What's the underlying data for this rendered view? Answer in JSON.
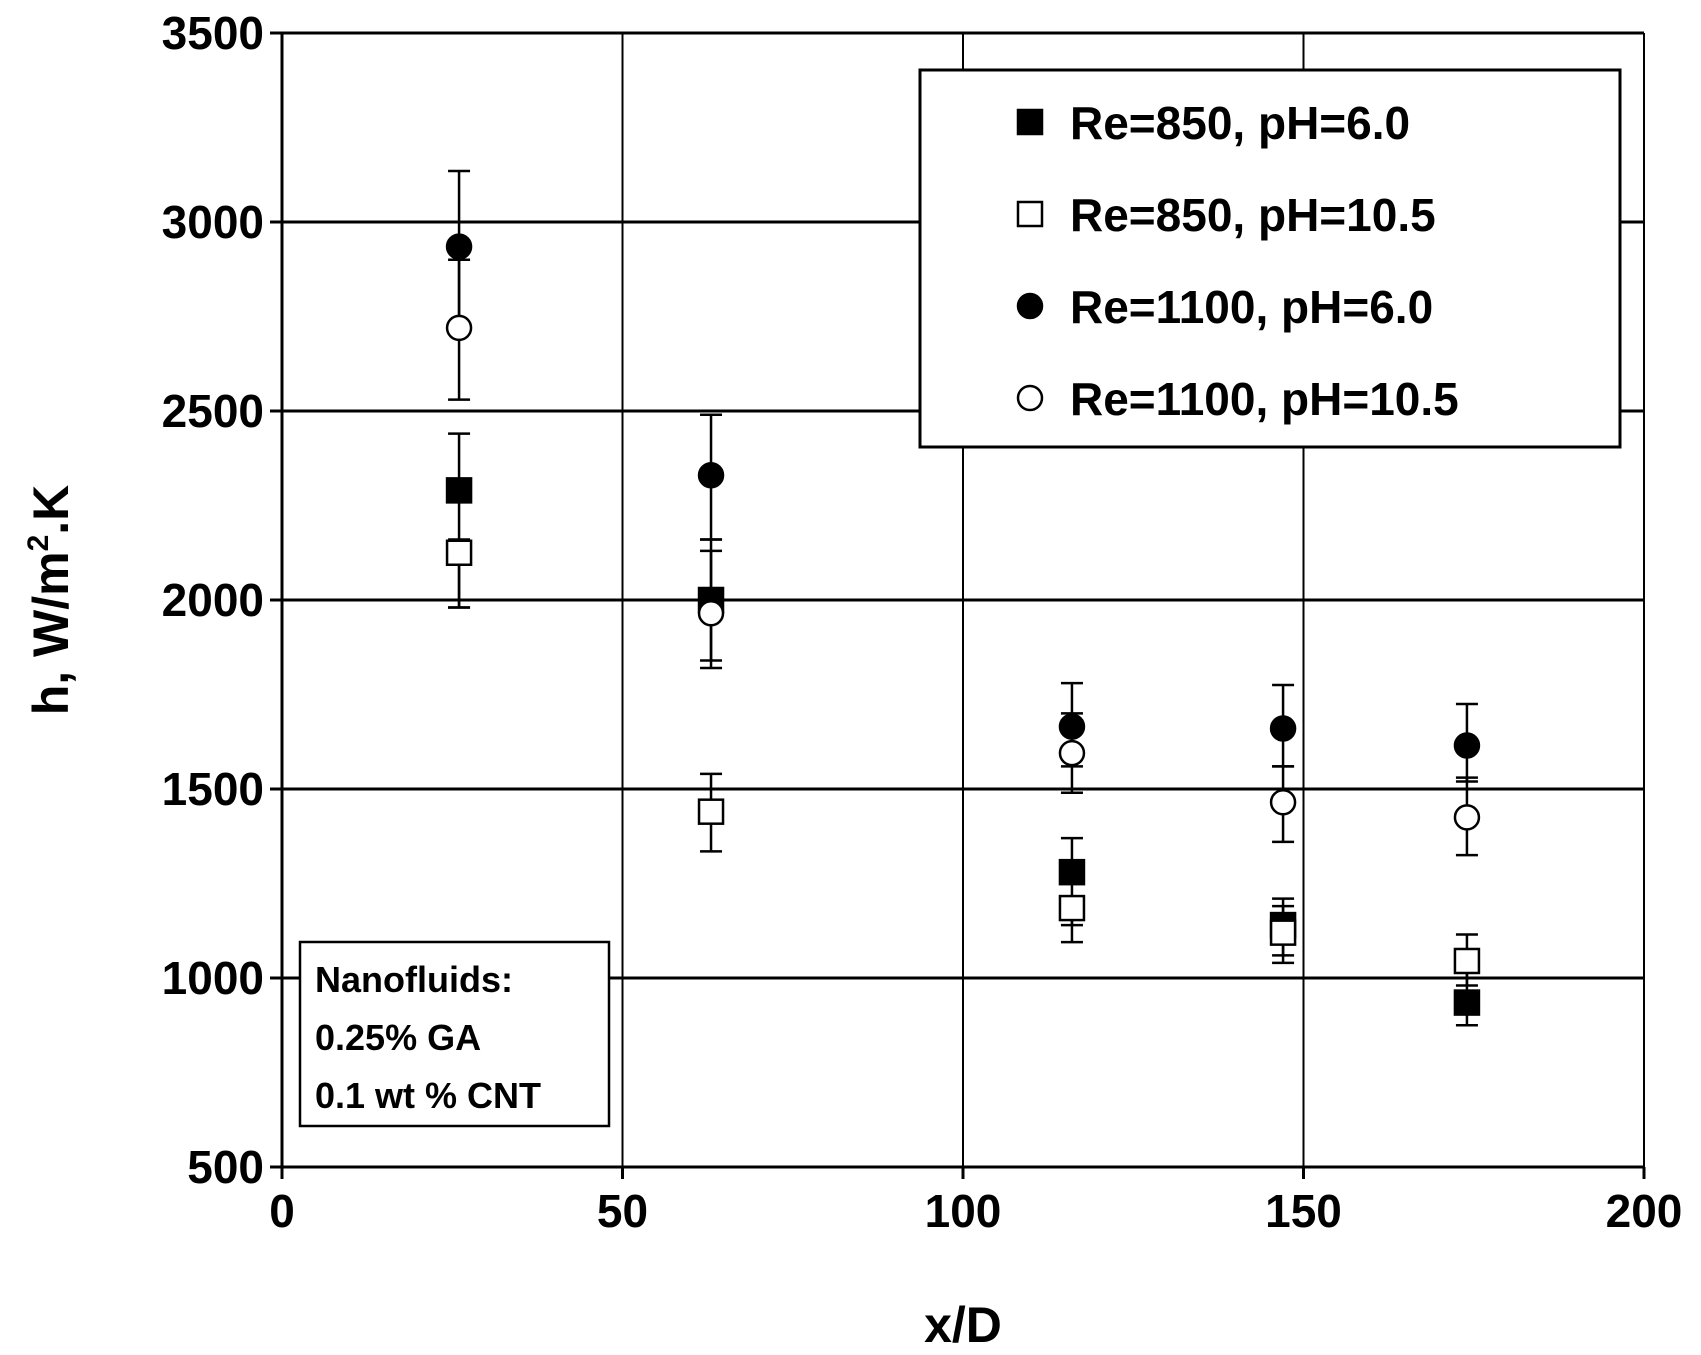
{
  "chart_data": {
    "type": "scatter",
    "title": "",
    "xlabel": "x/D",
    "ylabel_prefix": "h, W/m",
    "ylabel_sup": "2",
    "ylabel_suffix": ".K",
    "xlim": [
      0,
      200
    ],
    "ylim": [
      500,
      3500
    ],
    "xticks": [
      "0",
      "50",
      "100",
      "150",
      "200"
    ],
    "yticks": [
      "500",
      "1000",
      "1500",
      "2000",
      "2500",
      "3000",
      "3500"
    ],
    "grid": true,
    "legend_position": "top-right",
    "series": [
      {
        "name": "Re=850, pH=6.0",
        "marker": "filled-square",
        "points": [
          {
            "x": 26,
            "y": 2290,
            "err_low": 1980,
            "err_high": 2440
          },
          {
            "x": 63,
            "y": 2000,
            "err_low": 1840,
            "err_high": 2160
          },
          {
            "x": 116,
            "y": 1280,
            "err_low": 1140,
            "err_high": 1370
          },
          {
            "x": 147,
            "y": 1140,
            "err_low": 1060,
            "err_high": 1210
          },
          {
            "x": 174,
            "y": 935,
            "err_low": 875,
            "err_high": 1040
          }
        ]
      },
      {
        "name": "Re=850, pH=10.5",
        "marker": "open-square",
        "points": [
          {
            "x": 26,
            "y": 2125,
            "err_low": 1980,
            "err_high": 2160
          },
          {
            "x": 63,
            "y": 1440,
            "err_low": 1335,
            "err_high": 1540
          },
          {
            "x": 116,
            "y": 1185,
            "err_low": 1095,
            "err_high": 1210
          },
          {
            "x": 147,
            "y": 1120,
            "err_low": 1040,
            "err_high": 1190
          },
          {
            "x": 174,
            "y": 1045,
            "err_low": 980,
            "err_high": 1115
          }
        ]
      },
      {
        "name": "Re=1100, pH=6.0",
        "marker": "filled-circle",
        "points": [
          {
            "x": 26,
            "y": 2935,
            "err_low": 2730,
            "err_high": 3135
          },
          {
            "x": 63,
            "y": 2330,
            "err_low": 2160,
            "err_high": 2490
          },
          {
            "x": 116,
            "y": 1665,
            "err_low": 1560,
            "err_high": 1780
          },
          {
            "x": 147,
            "y": 1660,
            "err_low": 1560,
            "err_high": 1775
          },
          {
            "x": 174,
            "y": 1615,
            "err_low": 1520,
            "err_high": 1725
          }
        ]
      },
      {
        "name": "Re=1100, pH=10.5",
        "marker": "open-circle",
        "points": [
          {
            "x": 26,
            "y": 2720,
            "err_low": 2530,
            "err_high": 2900
          },
          {
            "x": 63,
            "y": 1965,
            "err_low": 1820,
            "err_high": 2130
          },
          {
            "x": 116,
            "y": 1595,
            "err_low": 1490,
            "err_high": 1700
          },
          {
            "x": 147,
            "y": 1465,
            "err_low": 1360,
            "err_high": 1560
          },
          {
            "x": 174,
            "y": 1425,
            "err_low": 1325,
            "err_high": 1530
          }
        ]
      }
    ],
    "annotation": [
      "Nanofluids:",
      "0.25% GA",
      "0.1 wt % CNT"
    ]
  }
}
